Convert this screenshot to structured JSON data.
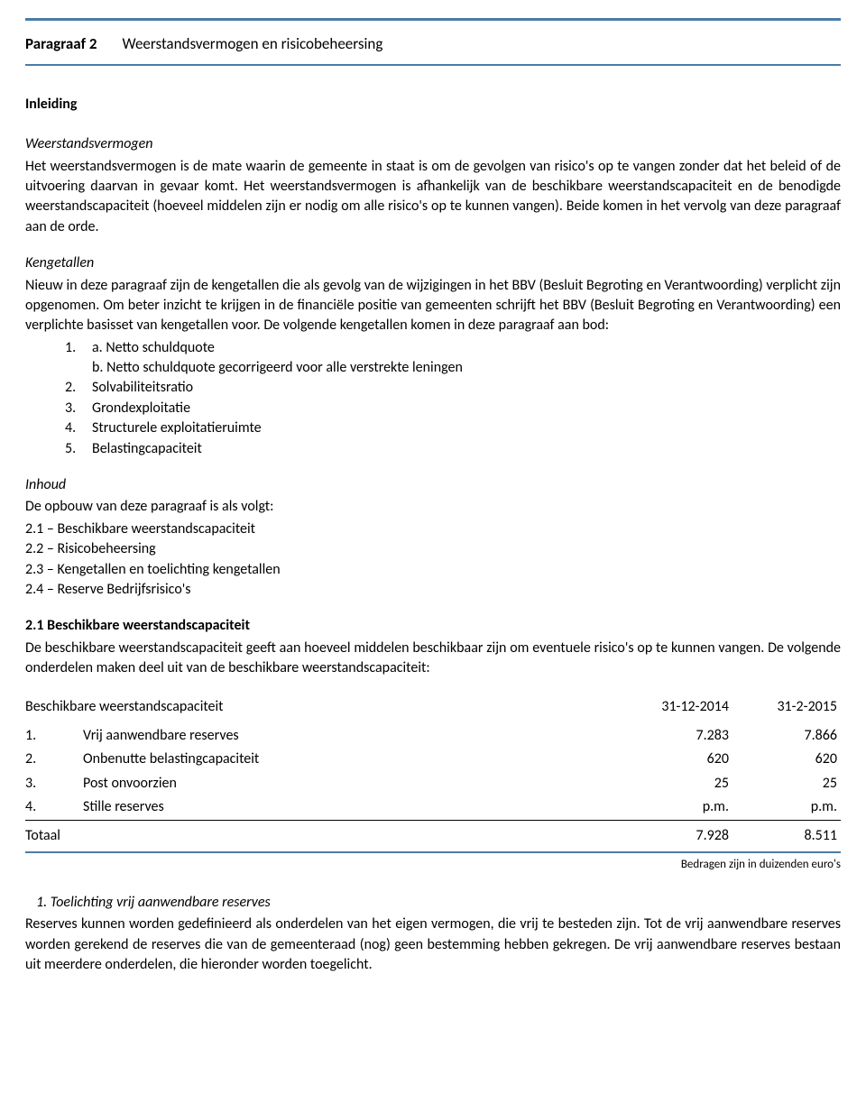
{
  "colors": {
    "rule": "#4a7ba6",
    "text": "#000000",
    "bg": "#ffffff"
  },
  "header": {
    "label": "Paragraaf 2",
    "title": "Weerstandsvermogen en risicobeheersing"
  },
  "inleiding": {
    "heading": "Inleiding"
  },
  "weerstandsvermogen": {
    "heading": "Weerstandsvermogen",
    "body": "Het weerstandsvermogen is de mate waarin de gemeente in staat is om de gevolgen van risico's op te vangen zonder dat het beleid of de uitvoering daarvan in gevaar komt. Het weerstandsvermogen is afhankelijk van de beschikbare weerstandscapaciteit en de benodigde weerstandscapaciteit (hoeveel middelen zijn er nodig om alle risico's op te kunnen vangen). Beide komen in het vervolg van deze paragraaf aan de orde."
  },
  "kengetallen": {
    "heading": "Kengetallen",
    "intro": "Nieuw in deze paragraaf zijn de kengetallen die als gevolg van de wijzigingen in het BBV (Besluit Begroting en Verantwoording) verplicht zijn opgenomen. Om beter inzicht te krijgen in de financiële positie van gemeenten schrijft het BBV (Besluit Begroting en Verantwoording) een verplichte basisset van kengetallen voor. De volgende kengetallen komen in deze paragraaf aan bod:",
    "items": [
      {
        "num": "1.",
        "label": "a. Netto schuldquote",
        "sub": "b. Netto schuldquote gecorrigeerd voor alle verstrekte leningen"
      },
      {
        "num": "2.",
        "label": "Solvabiliteitsratio"
      },
      {
        "num": "3.",
        "label": "Grondexploitatie"
      },
      {
        "num": "4.",
        "label": "Structurele exploitatieruimte"
      },
      {
        "num": "5.",
        "label": "Belastingcapaciteit"
      }
    ]
  },
  "inhoud": {
    "heading": "Inhoud",
    "intro": "De opbouw van deze paragraaf is als volgt:",
    "items": [
      "2.1 – Beschikbare weerstandscapaciteit",
      "2.2 – Risicobeheersing",
      "2.3 – Kengetallen en toelichting kengetallen",
      "2.4 – Reserve Bedrijfsrisico's"
    ]
  },
  "sec21": {
    "heading": "2.1 Beschikbare weerstandscapaciteit",
    "intro": "De beschikbare weerstandscapaciteit geeft aan hoeveel middelen beschikbaar zijn om eventuele risico's op te kunnen vangen. De volgende onderdelen maken deel uit van de beschikbare weerstandscapaciteit:",
    "table": {
      "title": "Beschikbare weerstandscapaciteit",
      "col1": "31-12-2014",
      "col2": "31-2-2015",
      "rows": [
        {
          "num": "1.",
          "label": "Vrij aanwendbare reserves",
          "v1": "7.283",
          "v2": "7.866"
        },
        {
          "num": "2.",
          "label": "Onbenutte belastingcapaciteit",
          "v1": "620",
          "v2": "620"
        },
        {
          "num": "3.",
          "label": "Post onvoorzien",
          "v1": "25",
          "v2": "25"
        },
        {
          "num": "4.",
          "label": "Stille reserves",
          "v1": "p.m.",
          "v2": "p.m."
        }
      ],
      "total": {
        "label": "Totaal",
        "v1": "7.928",
        "v2": "8.511"
      },
      "note": "Bedragen zijn in duizenden euro's"
    }
  },
  "toelichting1": {
    "heading": "1.  Toelichting vrij aanwendbare reserves",
    "body": "Reserves kunnen worden gedefinieerd als onderdelen van het eigen vermogen, die vrij te besteden zijn. Tot de vrij aanwendbare reserves worden gerekend de reserves die van de gemeenteraad (nog) geen bestemming hebben gekregen. De vrij aanwendbare reserves bestaan uit meerdere onderdelen, die hieronder worden toegelicht."
  }
}
